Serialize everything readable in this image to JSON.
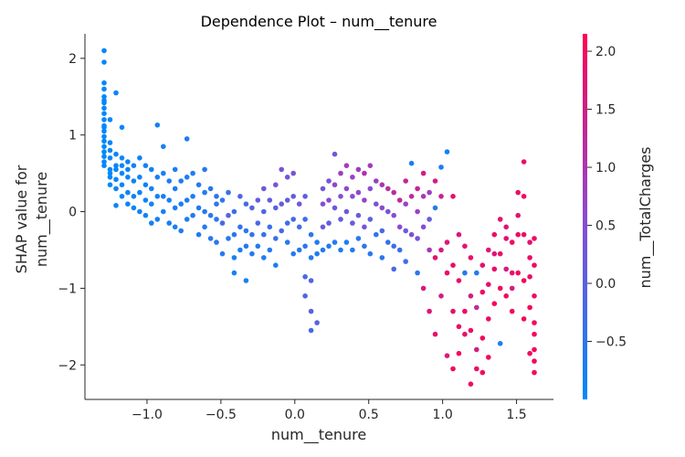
{
  "chart_data": {
    "type": "scatter",
    "title": "Dependence Plot – num__tenure",
    "xlabel": "num__tenure",
    "ylabel_line1": "SHAP value for",
    "ylabel_line2": "num__tenure",
    "colorbar_label": "num__TotalCharges",
    "xlim": [
      -1.42,
      1.75
    ],
    "ylim": [
      -2.45,
      2.32
    ],
    "x_ticks": [
      -1.0,
      -0.5,
      0.0,
      0.5,
      1.0,
      1.5
    ],
    "x_tick_labels": [
      "−1.0",
      "−0.5",
      "0.0",
      "0.5",
      "1.0",
      "1.5"
    ],
    "y_ticks": [
      -2,
      -1,
      0,
      1,
      2
    ],
    "y_tick_labels": [
      "−2",
      "−1",
      "0",
      "1",
      "2"
    ],
    "color_range": [
      -1.0,
      2.15
    ],
    "color_ticks": [
      -0.5,
      0.0,
      0.5,
      1.0,
      1.5,
      2.0
    ],
    "color_tick_labels": [
      "−0.5",
      "0.0",
      "0.5",
      "1.0",
      "1.5",
      "2.0"
    ],
    "colors": {
      "low": "#008afb",
      "mid": "#8c4ad2",
      "high": "#ff0052"
    },
    "grid": false,
    "x": [
      -1.29,
      -1.29,
      -1.29,
      -1.29,
      -1.29,
      -1.29,
      -1.29,
      -1.29,
      -1.29,
      -1.29,
      -1.29,
      -1.29,
      -1.29,
      -1.29,
      -1.29,
      -1.29,
      -1.29,
      -1.29,
      -1.29,
      -1.29,
      -1.25,
      -1.25,
      -1.25,
      -1.25,
      -1.25,
      -1.25,
      -1.25,
      -1.25,
      -1.21,
      -1.21,
      -1.21,
      -1.21,
      -1.21,
      -1.21,
      -1.21,
      -1.17,
      -1.17,
      -1.17,
      -1.17,
      -1.17,
      -1.17,
      -1.13,
      -1.13,
      -1.13,
      -1.13,
      -1.13,
      -1.09,
      -1.09,
      -1.09,
      -1.09,
      -1.05,
      -1.05,
      -1.05,
      -1.05,
      -1.01,
      -1.01,
      -1.01,
      -1.01,
      -0.97,
      -0.97,
      -0.97,
      -0.97,
      -0.93,
      -0.93,
      -0.93,
      -0.93,
      -0.89,
      -0.89,
      -0.89,
      -0.89,
      -0.85,
      -0.85,
      -0.85,
      -0.81,
      -0.81,
      -0.81,
      -0.81,
      -0.77,
      -0.77,
      -0.77,
      -0.73,
      -0.73,
      -0.73,
      -0.73,
      -0.69,
      -0.69,
      -0.69,
      -0.65,
      -0.65,
      -0.65,
      -0.61,
      -0.61,
      -0.61,
      -0.61,
      -0.57,
      -0.57,
      -0.57,
      -0.53,
      -0.53,
      -0.53,
      -0.53,
      -0.49,
      -0.49,
      -0.49,
      -0.45,
      -0.45,
      -0.45,
      -0.41,
      -0.41,
      -0.41,
      -0.41,
      -0.37,
      -0.37,
      -0.37,
      -0.33,
      -0.33,
      -0.33,
      -0.33,
      -0.29,
      -0.29,
      -0.29,
      -0.25,
      -0.25,
      -0.25,
      -0.21,
      -0.21,
      -0.21,
      -0.21,
      -0.17,
      -0.17,
      -0.17,
      -0.13,
      -0.13,
      -0.13,
      -0.13,
      -0.09,
      -0.09,
      -0.09,
      -0.05,
      -0.05,
      -0.05,
      -0.05,
      -0.01,
      -0.01,
      -0.01,
      -0.01,
      0.03,
      0.03,
      0.03,
      0.07,
      0.07,
      0.07,
      0.07,
      0.07,
      0.11,
      0.11,
      0.11,
      0.11,
      0.11,
      0.15,
      0.15,
      0.15,
      0.19,
      0.19,
      0.19,
      0.19,
      0.23,
      0.23,
      0.23,
      0.23,
      0.27,
      0.27,
      0.27,
      0.27,
      0.31,
      0.31,
      0.31,
      0.31,
      0.35,
      0.35,
      0.35,
      0.35,
      0.39,
      0.39,
      0.39,
      0.39,
      0.43,
      0.43,
      0.43,
      0.43,
      0.47,
      0.47,
      0.47,
      0.47,
      0.51,
      0.51,
      0.51,
      0.51,
      0.55,
      0.55,
      0.55,
      0.59,
      0.59,
      0.59,
      0.59,
      0.63,
      0.63,
      0.63,
      0.67,
      0.67,
      0.67,
      0.67,
      0.71,
      0.71,
      0.71,
      0.75,
      0.75,
      0.75,
      0.75,
      0.79,
      0.79,
      0.79,
      0.83,
      0.83,
      0.83,
      0.83,
      0.87,
      0.87,
      0.87,
      0.87,
      0.91,
      0.91,
      0.91,
      0.91,
      0.95,
      0.95,
      0.95,
      0.95,
      0.99,
      0.99,
      0.99,
      0.99,
      1.03,
      1.03,
      1.03,
      1.03,
      1.07,
      1.07,
      1.07,
      1.07,
      1.11,
      1.11,
      1.11,
      1.11,
      1.15,
      1.15,
      1.15,
      1.15,
      1.19,
      1.19,
      1.19,
      1.19,
      1.23,
      1.23,
      1.23,
      1.23,
      1.27,
      1.27,
      1.27,
      1.27,
      1.31,
      1.31,
      1.31,
      1.31,
      1.35,
      1.35,
      1.35,
      1.35,
      1.39,
      1.39,
      1.39,
      1.39,
      1.43,
      1.43,
      1.43,
      1.43,
      1.47,
      1.47,
      1.47,
      1.47,
      1.51,
      1.51,
      1.51,
      1.51,
      1.55,
      1.55,
      1.55,
      1.55,
      1.55,
      1.59,
      1.59,
      1.59,
      1.59,
      1.59,
      1.62,
      1.62,
      1.62,
      1.62,
      1.62,
      1.62,
      1.62,
      1.62
    ],
    "y": [
      2.1,
      1.95,
      1.68,
      1.6,
      1.5,
      1.42,
      1.35,
      1.28,
      1.2,
      1.12,
      1.05,
      0.98,
      0.92,
      0.85,
      0.78,
      0.72,
      0.65,
      0.6,
      1.45,
      1.1,
      0.9,
      0.7,
      0.55,
      0.45,
      1.2,
      0.8,
      0.5,
      0.35,
      0.75,
      0.6,
      0.42,
      0.3,
      1.55,
      0.08,
      0.55,
      0.7,
      0.5,
      0.35,
      0.2,
      1.1,
      0.6,
      0.65,
      0.45,
      0.25,
      0.1,
      0.55,
      0.6,
      0.4,
      0.2,
      0.05,
      0.7,
      0.45,
      0.25,
      0.0,
      0.6,
      0.35,
      0.15,
      -0.05,
      0.55,
      0.3,
      0.1,
      -0.15,
      0.45,
      1.13,
      0.2,
      -0.1,
      0.85,
      0.5,
      0.2,
      0.0,
      0.4,
      0.15,
      -0.15,
      0.55,
      0.3,
      0.05,
      -0.2,
      0.4,
      0.1,
      -0.25,
      0.95,
      0.45,
      0.15,
      -0.1,
      0.5,
      0.2,
      -0.05,
      0.35,
      0.05,
      -0.3,
      0.55,
      0.25,
      0.0,
      -0.2,
      0.3,
      -0.05,
      -0.35,
      0.2,
      -0.1,
      -0.4,
      0.1,
      0.15,
      -0.15,
      -0.55,
      0.25,
      -0.05,
      -0.35,
      0.0,
      -0.3,
      -0.6,
      -0.8,
      0.2,
      -0.2,
      -0.5,
      0.1,
      -0.25,
      -0.45,
      -0.9,
      0.05,
      -0.3,
      -0.55,
      0.15,
      -0.15,
      -0.45,
      0.3,
      0.0,
      -0.3,
      -0.6,
      0.15,
      -0.2,
      -0.5,
      0.35,
      0.05,
      -0.35,
      -0.7,
      0.55,
      0.1,
      -0.25,
      0.45,
      0.15,
      -0.15,
      -0.4,
      0.5,
      0.2,
      -0.1,
      -0.55,
      0.1,
      -0.2,
      -0.5,
      0.2,
      -0.1,
      -0.45,
      -1.1,
      -0.85,
      -0.3,
      -0.6,
      -1.3,
      -1.55,
      -0.9,
      -0.4,
      -1.45,
      -0.55,
      0.3,
      0.1,
      -0.2,
      -0.5,
      0.4,
      0.15,
      -0.15,
      -0.45,
      0.75,
      0.35,
      0.05,
      -0.4,
      0.5,
      0.2,
      -0.1,
      -0.5,
      0.6,
      0.3,
      0.0,
      -0.4,
      0.45,
      0.2,
      -0.15,
      -0.5,
      0.55,
      0.25,
      -0.05,
      -0.35,
      0.5,
      0.15,
      -0.2,
      -0.45,
      0.6,
      0.3,
      -0.1,
      -0.55,
      0.4,
      0.1,
      -0.3,
      0.35,
      0.05,
      -0.25,
      -0.6,
      0.3,
      0.0,
      -0.4,
      0.25,
      -0.05,
      -0.45,
      -0.75,
      0.15,
      -0.2,
      -0.5,
      0.4,
      0.1,
      -0.25,
      -0.65,
      0.63,
      0.2,
      -0.3,
      0.3,
      0.0,
      -0.35,
      -0.8,
      0.5,
      0.2,
      -0.2,
      -1.0,
      0.25,
      -0.1,
      -0.5,
      -1.3,
      0.4,
      0.05,
      -0.6,
      -1.6,
      0.58,
      0.2,
      -0.5,
      -1.1,
      0.78,
      -0.4,
      -0.8,
      -1.88,
      0.2,
      -0.7,
      -1.3,
      -2.05,
      -0.3,
      -0.9,
      -1.5,
      -1.85,
      -0.45,
      -0.8,
      -1.3,
      -1.6,
      -0.6,
      -1.1,
      -1.55,
      -2.25,
      -0.8,
      -1.25,
      -1.8,
      -2.05,
      -0.7,
      -1.05,
      -1.65,
      -2.1,
      -0.5,
      -0.95,
      -1.4,
      -1.9,
      -0.3,
      -0.75,
      -1.2,
      -0.55,
      -0.1,
      -0.55,
      -1.0,
      -1.72,
      -0.35,
      -0.75,
      -1.1,
      -0.2,
      -0.4,
      -0.8,
      -1.3,
      -1.0,
      0.25,
      -0.3,
      -0.8,
      -0.05,
      0.65,
      0.2,
      -0.3,
      -0.9,
      -1.4,
      -0.4,
      -0.85,
      -1.25,
      -1.85,
      -0.6,
      -0.7,
      -1.1,
      -1.45,
      -1.8,
      -2.1,
      -0.35,
      -1.6,
      -1.95
    ],
    "c": [
      -0.95,
      -0.95,
      -0.95,
      -0.95,
      -0.95,
      -0.95,
      -0.95,
      -0.95,
      -0.95,
      -0.95,
      -0.95,
      -0.95,
      -0.95,
      -0.95,
      -0.95,
      -0.95,
      -0.95,
      -0.95,
      -0.95,
      -0.95,
      -0.92,
      -0.92,
      -0.92,
      -0.92,
      -0.92,
      -0.92,
      -0.92,
      -0.92,
      -0.9,
      -0.9,
      -0.9,
      -0.9,
      -0.9,
      -0.9,
      -0.9,
      -0.88,
      -0.88,
      -0.88,
      -0.88,
      -0.88,
      -0.88,
      -0.86,
      -0.86,
      -0.86,
      -0.86,
      -0.86,
      -0.84,
      -0.84,
      -0.84,
      -0.84,
      -0.82,
      -0.82,
      -0.82,
      -0.82,
      -0.8,
      -0.8,
      -0.8,
      -0.8,
      -0.78,
      -0.78,
      -0.78,
      -0.78,
      -0.76,
      -0.76,
      -0.76,
      -0.76,
      -0.74,
      -0.74,
      -0.74,
      -0.74,
      -0.72,
      -0.72,
      -0.72,
      -0.7,
      -0.7,
      -0.7,
      -0.7,
      -0.68,
      -0.68,
      -0.68,
      -0.66,
      -0.66,
      -0.66,
      -0.66,
      -0.64,
      -0.64,
      -0.64,
      -0.6,
      -0.6,
      -0.6,
      -0.58,
      -0.58,
      -0.58,
      -0.58,
      -0.55,
      -0.55,
      -0.55,
      -0.5,
      -0.5,
      -0.5,
      -0.5,
      -0.45,
      -0.2,
      -0.55,
      -0.4,
      -0.1,
      -0.6,
      -0.3,
      -0.55,
      -0.7,
      -0.75,
      -0.1,
      -0.4,
      -0.65,
      -0.2,
      -0.5,
      -0.6,
      -0.8,
      0.0,
      -0.4,
      -0.6,
      0.1,
      -0.2,
      -0.55,
      0.2,
      -0.1,
      -0.4,
      -0.65,
      0.15,
      -0.3,
      -0.6,
      0.3,
      0.0,
      -0.3,
      -0.7,
      0.4,
      0.2,
      -0.2,
      0.3,
      0.1,
      -0.3,
      -0.55,
      0.35,
      0.1,
      -0.2,
      -0.6,
      0.2,
      -0.3,
      -0.6,
      0.1,
      -0.2,
      -0.5,
      -0.1,
      -0.2,
      -0.5,
      -0.6,
      0.0,
      -0.2,
      -0.1,
      -0.6,
      0.05,
      -0.65,
      0.3,
      0.5,
      0.2,
      -0.6,
      0.4,
      0.6,
      0.1,
      -0.6,
      0.3,
      0.7,
      0.2,
      -0.6,
      0.8,
      0.5,
      0.1,
      -0.7,
      0.9,
      0.6,
      0.2,
      -0.7,
      0.7,
      0.5,
      0.1,
      -0.6,
      0.8,
      0.6,
      0.2,
      -0.6,
      1.1,
      0.7,
      0.3,
      -0.5,
      0.9,
      0.5,
      0.0,
      -0.6,
      0.8,
      0.4,
      -0.5,
      1.0,
      0.6,
      -0.2,
      -0.5,
      1.1,
      0.4,
      -0.4,
      1.2,
      0.5,
      -0.3,
      -0.2,
      1.3,
      0.6,
      -0.3,
      1.3,
      0.7,
      0.2,
      -0.3,
      -0.7,
      1.2,
      0.4,
      1.4,
      0.8,
      0.3,
      -0.5,
      1.5,
      0.9,
      0.5,
      1.6,
      0.8,
      0.2,
      1.0,
      1.7,
      1.5,
      -0.6,
      1.8,
      1.9,
      -0.7,
      1.4,
      1.6,
      1.5,
      -0.8,
      1.7,
      1.9,
      1.6,
      1.8,
      1.9,
      1.8,
      2.0,
      1.7,
      1.9,
      1.9,
      2.0,
      1.8,
      -0.5,
      1.9,
      1.8,
      1.9,
      1.6,
      2.0,
      2.0,
      -0.6,
      1.2,
      1.5,
      1.9,
      1.8,
      1.9,
      2.0,
      2.0,
      1.7,
      1.9,
      1.9,
      2.0,
      1.9,
      1.9,
      2.0,
      1.7,
      1.8,
      1.9,
      2.0,
      -0.7,
      1.8,
      1.6,
      2.0,
      1.7,
      1.9,
      1.9,
      2.0,
      1.6,
      1.9,
      2.0,
      2.0,
      1.8,
      1.9,
      2.0,
      1.9,
      2.0,
      2.0,
      1.8,
      1.9,
      2.0,
      2.0,
      1.9,
      2.0,
      1.9,
      2.0,
      2.0,
      2.0,
      1.9,
      2.0,
      2.0
    ]
  }
}
